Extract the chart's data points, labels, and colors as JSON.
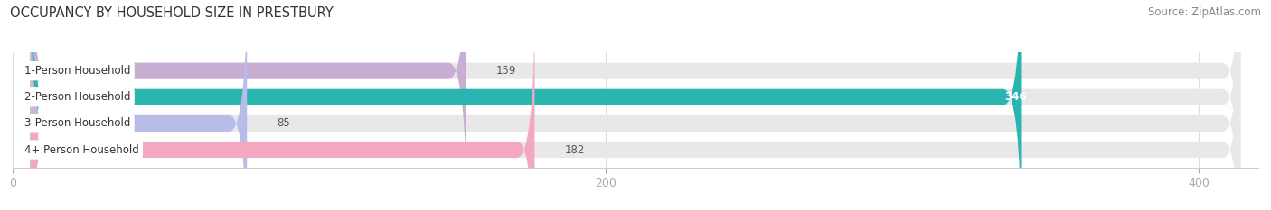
{
  "title": "OCCUPANCY BY HOUSEHOLD SIZE IN PRESTBURY",
  "source": "Source: ZipAtlas.com",
  "categories": [
    "1-Person Household",
    "2-Person Household",
    "3-Person Household",
    "4+ Person Household"
  ],
  "values": [
    159,
    346,
    85,
    182
  ],
  "bar_colors": [
    "#c9aed4",
    "#2ab5b0",
    "#b8bce8",
    "#f4a8c0"
  ],
  "bar_label_colors": [
    "#444444",
    "#ffffff",
    "#444444",
    "#444444"
  ],
  "xlim": [
    0,
    420
  ],
  "xticks": [
    0,
    200,
    400
  ],
  "background_color": "#ffffff",
  "bar_bg_color": "#e8e8e8",
  "title_fontsize": 10.5,
  "source_fontsize": 8.5,
  "tick_fontsize": 9,
  "label_fontsize": 8.5,
  "value_fontsize": 8.5,
  "bar_height": 0.62,
  "figsize": [
    14.06,
    2.33
  ],
  "dpi": 100
}
